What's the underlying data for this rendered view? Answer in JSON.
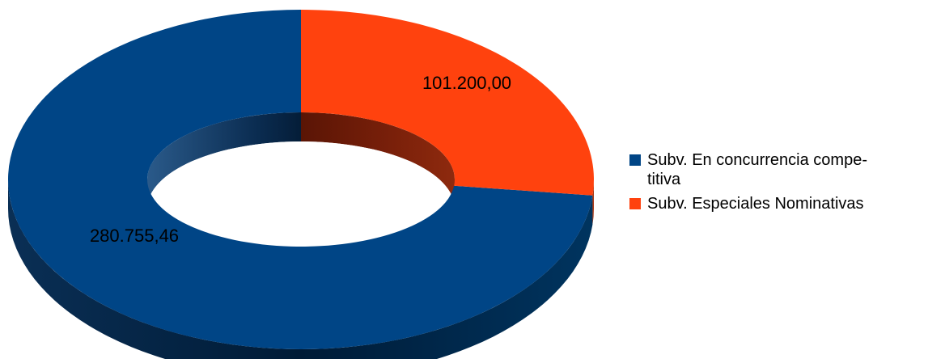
{
  "chart_data": {
    "type": "pie",
    "style": "3d-donut",
    "categories": [
      "Subv. En concurrencia compe-\ntitiva",
      "Subv. Especiales Nominativas"
    ],
    "values": [
      280755.46,
      101200.0
    ],
    "data_labels": [
      "280.755,46",
      "101.200,00"
    ],
    "colors": [
      "#004586",
      "#ff420e"
    ],
    "title": "",
    "legend_position": "right"
  }
}
